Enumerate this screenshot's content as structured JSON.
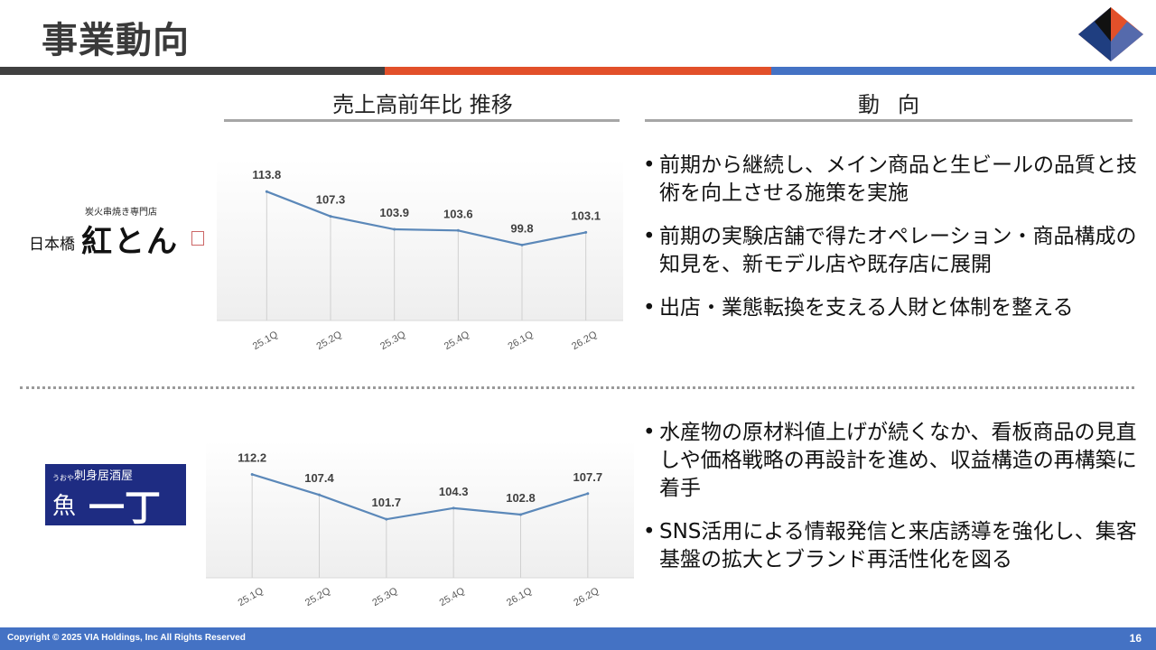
{
  "header": {
    "title": "事業動向",
    "band_colors": [
      "#404040",
      "#e2502a",
      "#4472c4"
    ]
  },
  "columns": {
    "left_heading": "売上高前年比 推移",
    "right_heading": "動向"
  },
  "brands": {
    "top": {
      "small_text": "炭火串焼き専門店",
      "prefix": "日本橋",
      "name": "紅とん"
    },
    "bottom": {
      "small_text": "刺身居酒屋",
      "kana": "うおや",
      "name": "一丁",
      "bg_color": "#1e2c82"
    }
  },
  "chart_data": [
    {
      "type": "line",
      "categories": [
        "25.1Q",
        "25.2Q",
        "25.3Q",
        "25.4Q",
        "26.1Q",
        "26.2Q"
      ],
      "values": [
        113.8,
        107.3,
        103.9,
        103.6,
        99.8,
        103.1
      ],
      "ylim": [
        80,
        120
      ],
      "line_color": "#5b88b9",
      "grid": false
    },
    {
      "type": "line",
      "categories": [
        "25.1Q",
        "25.2Q",
        "25.3Q",
        "25.4Q",
        "26.1Q",
        "26.2Q"
      ],
      "values": [
        112.2,
        107.4,
        101.7,
        104.3,
        102.8,
        107.7
      ],
      "ylim": [
        88,
        118
      ],
      "line_color": "#5b88b9",
      "grid": false
    }
  ],
  "trends": {
    "top": [
      "前期から継続し、メイン商品と生ビールの品質と技術を向上させる施策を実施",
      "前期の実験店舗で得たオペレーション・商品構成の知見を、新モデル店や既存店に展開",
      "出店・業態転換を支える人財と体制を整える"
    ],
    "bottom": [
      "水産物の原材料値上げが続くなか、看板商品の見直しや価格戦略の再設計を進め、収益構造の再構築に着手",
      "SNS活用による情報発信と来店誘導を強化し、集客基盤の拡大とブランド再活性化を図る"
    ]
  },
  "footer": {
    "copyright": "Copyright © 2025 VIA Holdings, Inc All Rights Reserved",
    "page_number": "16"
  },
  "icons": {
    "company_logo": "via-logo-icon"
  }
}
